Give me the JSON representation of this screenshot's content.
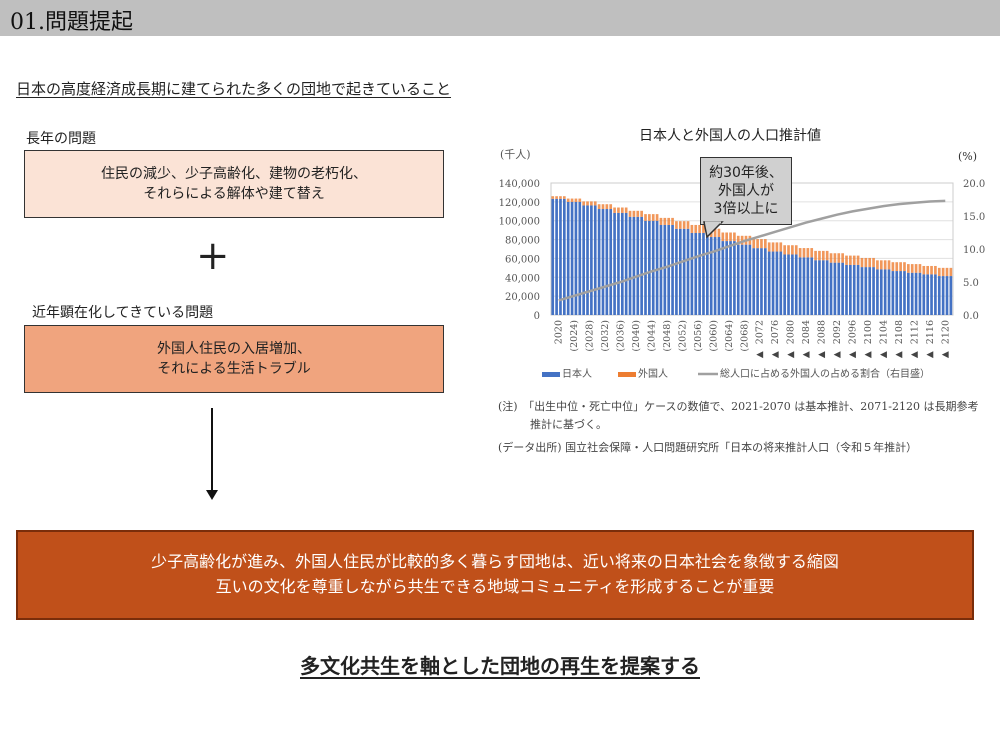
{
  "header": {
    "title": "01.問題提起"
  },
  "subtitle": "日本の高度経済成長期に建てられた多くの団地で起きていること",
  "long_term": {
    "label": "長年の問題",
    "lines": [
      "住民の減少、少子高齢化、建物の老朽化、",
      "それらによる解体や建て替え"
    ]
  },
  "plus_symbol": "+",
  "recent": {
    "label": "近年顕在化してきている問題",
    "lines": [
      "外国人住民の入居増加、",
      "それによる生活トラブル"
    ]
  },
  "banner": {
    "lines": [
      "少子高齢化が進み、外国人住民が比較的多く暮らす団地は、近い将来の日本社会を象徴する縮図",
      "互いの文化を尊重しながら共生できる地域コミュニティを形成することが重要"
    ]
  },
  "conclusion": "多文化共生を軸とした団地の再生を提案する",
  "callout": {
    "lines": [
      "約30年後、",
      "外国人が",
      "3倍以上に"
    ]
  },
  "notes": {
    "note1": "(注)　「出生中位・死亡中位」ケースの数値で、2021-2070 は基本推計、2071-2120 は長期参考",
    "note2": "推計に基づく。",
    "source": "(データ出所) 国立社会保障・人口問題研究所「日本の将来推計人口（令和５年推計）"
  },
  "chart_data": {
    "type": "bar",
    "stacked": true,
    "title": "日本人と外国人の人口推計値",
    "ylabel": "(千人)",
    "y2label": "(%)",
    "ylim": [
      0,
      140000
    ],
    "y2lim": [
      0,
      20
    ],
    "yticks": [
      "0",
      "20,000",
      "40,000",
      "60,000",
      "80,000",
      "100,000",
      "120,000",
      "140,000"
    ],
    "y2ticks": [
      "0.0",
      "5.0",
      "10.0",
      "15.0",
      "20.0"
    ],
    "categories": [
      "2020",
      "(2024)",
      "(2028)",
      "(2032)",
      "(2036)",
      "(2040)",
      "(2044)",
      "(2048)",
      "(2052)",
      "(2056)",
      "(2060)",
      "(2064)",
      "(2068)",
      "2072",
      "2076",
      "2080",
      "2084",
      "2088",
      "2092",
      "2096",
      "2100",
      "2104",
      "2108",
      "2112",
      "2116",
      "2120"
    ],
    "long_term_marker": "◀",
    "long_term_from_index": 13,
    "series": [
      {
        "name": "日本人",
        "color": "#4472c4",
        "values": [
          123200,
          119900,
          116200,
          112400,
          108300,
          104100,
          99900,
          95500,
          91400,
          87000,
          82700,
          78400,
          74600,
          70900,
          67300,
          64200,
          61100,
          58100,
          55500,
          53100,
          50800,
          48400,
          46600,
          44800,
          43100,
          41300
        ]
      },
      {
        "name": "外国人",
        "color": "#ed7d31",
        "values": [
          2800,
          3600,
          4300,
          5100,
          5700,
          6400,
          7100,
          7500,
          8100,
          8500,
          8800,
          9100,
          9400,
          9600,
          9700,
          9800,
          9900,
          9900,
          10000,
          9900,
          9700,
          9600,
          9400,
          9200,
          8900,
          8700
        ]
      },
      {
        "name": "総人口に占める外国人の占める割合（右目盛）",
        "color": "#a0a0a0",
        "axis": "right",
        "type": "line",
        "values": [
          2.2,
          2.9,
          3.6,
          4.3,
          5.0,
          5.8,
          6.6,
          7.3,
          8.1,
          8.9,
          9.6,
          10.4,
          11.2,
          11.9,
          12.6,
          13.3,
          14.0,
          14.6,
          15.2,
          15.7,
          16.1,
          16.5,
          16.8,
          17.0,
          17.2,
          17.3
        ]
      }
    ],
    "legend": "bottom",
    "grid": true
  }
}
